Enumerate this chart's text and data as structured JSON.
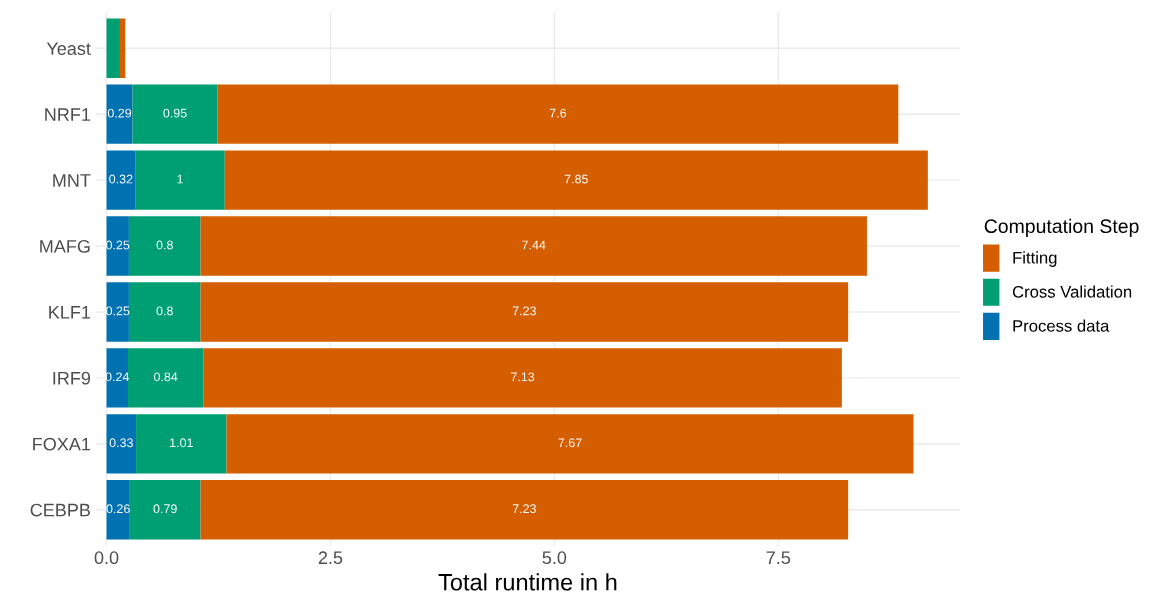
{
  "chart_data": {
    "type": "bar",
    "orientation": "horizontal",
    "stacked": true,
    "categories": [
      "Yeast",
      "NRF1",
      "MNT",
      "MAFG",
      "KLF1",
      "IRF9",
      "FOXA1",
      "CEBPB"
    ],
    "series": [
      {
        "name": "Process data",
        "color": "#0072b2",
        "values": [
          null,
          0.29,
          0.32,
          0.25,
          0.25,
          0.24,
          0.33,
          0.26
        ],
        "value_labels": [
          null,
          "0.29",
          "0.32",
          "0.25",
          "0.25",
          "0.24",
          "0.33",
          "0.26"
        ]
      },
      {
        "name": "Cross Validation",
        "color": "#009e73",
        "values": [
          0.15,
          0.95,
          1,
          0.8,
          0.8,
          0.84,
          1.01,
          0.79
        ],
        "value_labels": [
          null,
          "0.95",
          "1",
          "0.8",
          "0.8",
          "0.84",
          "1.01",
          "0.79"
        ]
      },
      {
        "name": "Fitting",
        "color": "#d55e00",
        "values": [
          0.06,
          7.6,
          7.85,
          7.44,
          7.23,
          7.13,
          7.67,
          7.23
        ],
        "value_labels": [
          null,
          "7.6",
          "7.85",
          "7.44",
          "7.23",
          "7.13",
          "7.67",
          "7.23"
        ]
      }
    ],
    "xlabel": "Total runtime in h",
    "legend_title": "Computation Step",
    "legend": "right",
    "xlim": [
      -0.12,
      9.53
    ],
    "xticks": [
      {
        "value": 0,
        "label": "0.0"
      },
      2.5,
      {
        "value": 5,
        "label": "5.0"
      },
      7.5
    ],
    "grid": true
  }
}
